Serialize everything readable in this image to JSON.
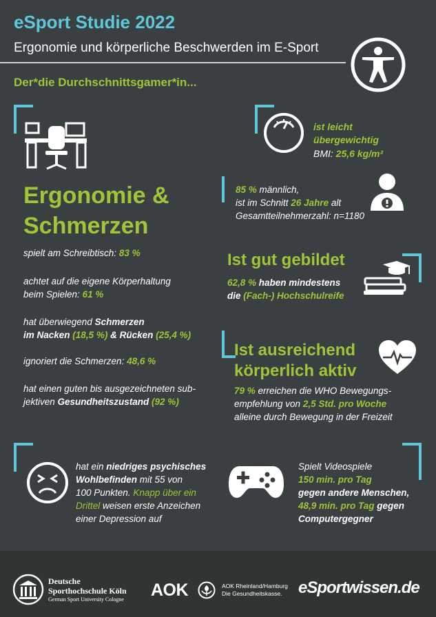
{
  "header": {
    "title": "eSport Studie 2022",
    "subtitle": "Ergonomie und körperliche Beschwerden im E-Sport",
    "tagline": "Der*die Durchschnittsgamer*in...",
    "accessibility_icon": "person-figure-icon"
  },
  "ergonomie": {
    "heading_1": "Ergonomie &",
    "heading_2": "Schmerzen",
    "item1_text": "spielt am Schreibtisch: ",
    "item1_value": "83 %",
    "item2_line1": "achtet auf die eigene Körperhaltung",
    "item2_text": "beim Spielen: ",
    "item2_value": "61 %",
    "item3_prefix": "hat überwiegend ",
    "item3_bold1": "Schmerzen",
    "item3_bold2": "im Nacken",
    "item3_val1": " (18,5 %)",
    "item3_amp": " & ",
    "item3_bold3": "Rücken",
    "item3_val2": " (25,4 %)",
    "item4_text": "ignoriert die Schmerzen: ",
    "item4_value": "48,6 %",
    "item5_line1": "hat einen guten bis ausgezeichneten sub-",
    "item5_prefix": "jektiven ",
    "item5_bold": "Gesundheitszustand",
    "item5_value": " (92 %)"
  },
  "bmi": {
    "line1": "ist leicht",
    "line2": "übergewichtig",
    "label": "BMI: ",
    "value": "25,6 kg/m²"
  },
  "demographics": {
    "pct": "85 %",
    "male": " männlich,",
    "age_prefix": "ist im Schnitt ",
    "age_value": "26 Jahre",
    "age_suffix": " alt",
    "total": "Gesamtteilnehmerzahl: n=1180"
  },
  "education": {
    "heading": "Ist gut gebildet",
    "pct": "62,8 %",
    "text1": " haben mindestens",
    "text2": "die ",
    "highlight": "(Fach-) Hochschulreife"
  },
  "activity": {
    "heading_1": "Ist ausreichend",
    "heading_2": "körperlich aktiv",
    "pct": "79 %",
    "text1": " erreichen die WHO Bewegungs-",
    "text2": "empfehlung von ",
    "highlight": "2,5 Std. pro Woche",
    "text3": "alleine durch Bewegung in der Freizeit"
  },
  "wellbeing": {
    "line1_prefix": "hat ein ",
    "line1_bold": "niedriges psychisches",
    "line2_bold": "Wohlbefinden",
    "line2_rest": " mit 55 von",
    "line3_rest": "100 Punkten. ",
    "line3_green": "Knapp über ein",
    "line4_green": "Drittel",
    "line4_rest": " weisen erste Anzeichen",
    "line5": "einer Depression auf"
  },
  "gaming": {
    "line1": "Spielt Videospiele",
    "value1": "150 min. pro Tag",
    "line2": "gegen andere Menschen,",
    "value2": "48,9 min. pro Tag",
    "line3_suffix": " gegen",
    "line4": "Computergegner"
  },
  "footer": {
    "dshs_line1": "Deutsche",
    "dshs_line2": "Sporthochschule Köln",
    "dshs_line3": "German Sport University Cologne",
    "aok_logo": "AOK",
    "aok_line1": "AOK Rheinland/Hamburg",
    "aok_line2": "Die Gesundheitskasse.",
    "esport_logo": "eSportwissen.de"
  },
  "colors": {
    "background": "#3a3f41",
    "accent_cyan": "#5ec8d8",
    "accent_green": "#a2c439",
    "footer_bg": "#2f3435"
  }
}
